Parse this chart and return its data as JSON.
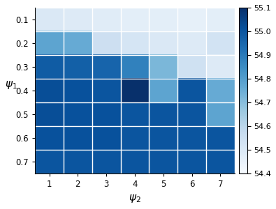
{
  "psi1_values": [
    0.1,
    0.2,
    0.3,
    0.4,
    0.5,
    0.6,
    0.7
  ],
  "psi2_values": [
    1,
    2,
    3,
    4,
    5,
    6,
    7
  ],
  "heatmap_data": [
    [
      54.5,
      54.49,
      54.48,
      54.47,
      54.47,
      54.46,
      54.47
    ],
    [
      54.78,
      54.76,
      54.55,
      54.52,
      54.5,
      54.49,
      54.53
    ],
    [
      54.98,
      54.97,
      54.96,
      54.88,
      54.72,
      54.54,
      54.49
    ],
    [
      55.02,
      55.01,
      55.0,
      55.1,
      54.78,
      55.0,
      54.76
    ],
    [
      55.02,
      55.01,
      55.01,
      55.0,
      55.0,
      55.0,
      54.78
    ],
    [
      55.01,
      55.01,
      55.01,
      55.0,
      55.0,
      55.0,
      55.0
    ],
    [
      55.0,
      55.0,
      55.0,
      55.0,
      55.0,
      55.0,
      55.0
    ]
  ],
  "vmin": 54.4,
  "vmax": 55.1,
  "cmap": "Blues",
  "xlabel": "$\\psi_2$",
  "ylabel": "$\\psi_1$",
  "colorbar_ticks": [
    54.4,
    54.5,
    54.6,
    54.7,
    54.8,
    54.9,
    55.0,
    55.1
  ],
  "figsize": [
    3.95,
    3.0
  ],
  "dpi": 100,
  "tick_fontsize": 8.5,
  "label_fontsize": 11
}
